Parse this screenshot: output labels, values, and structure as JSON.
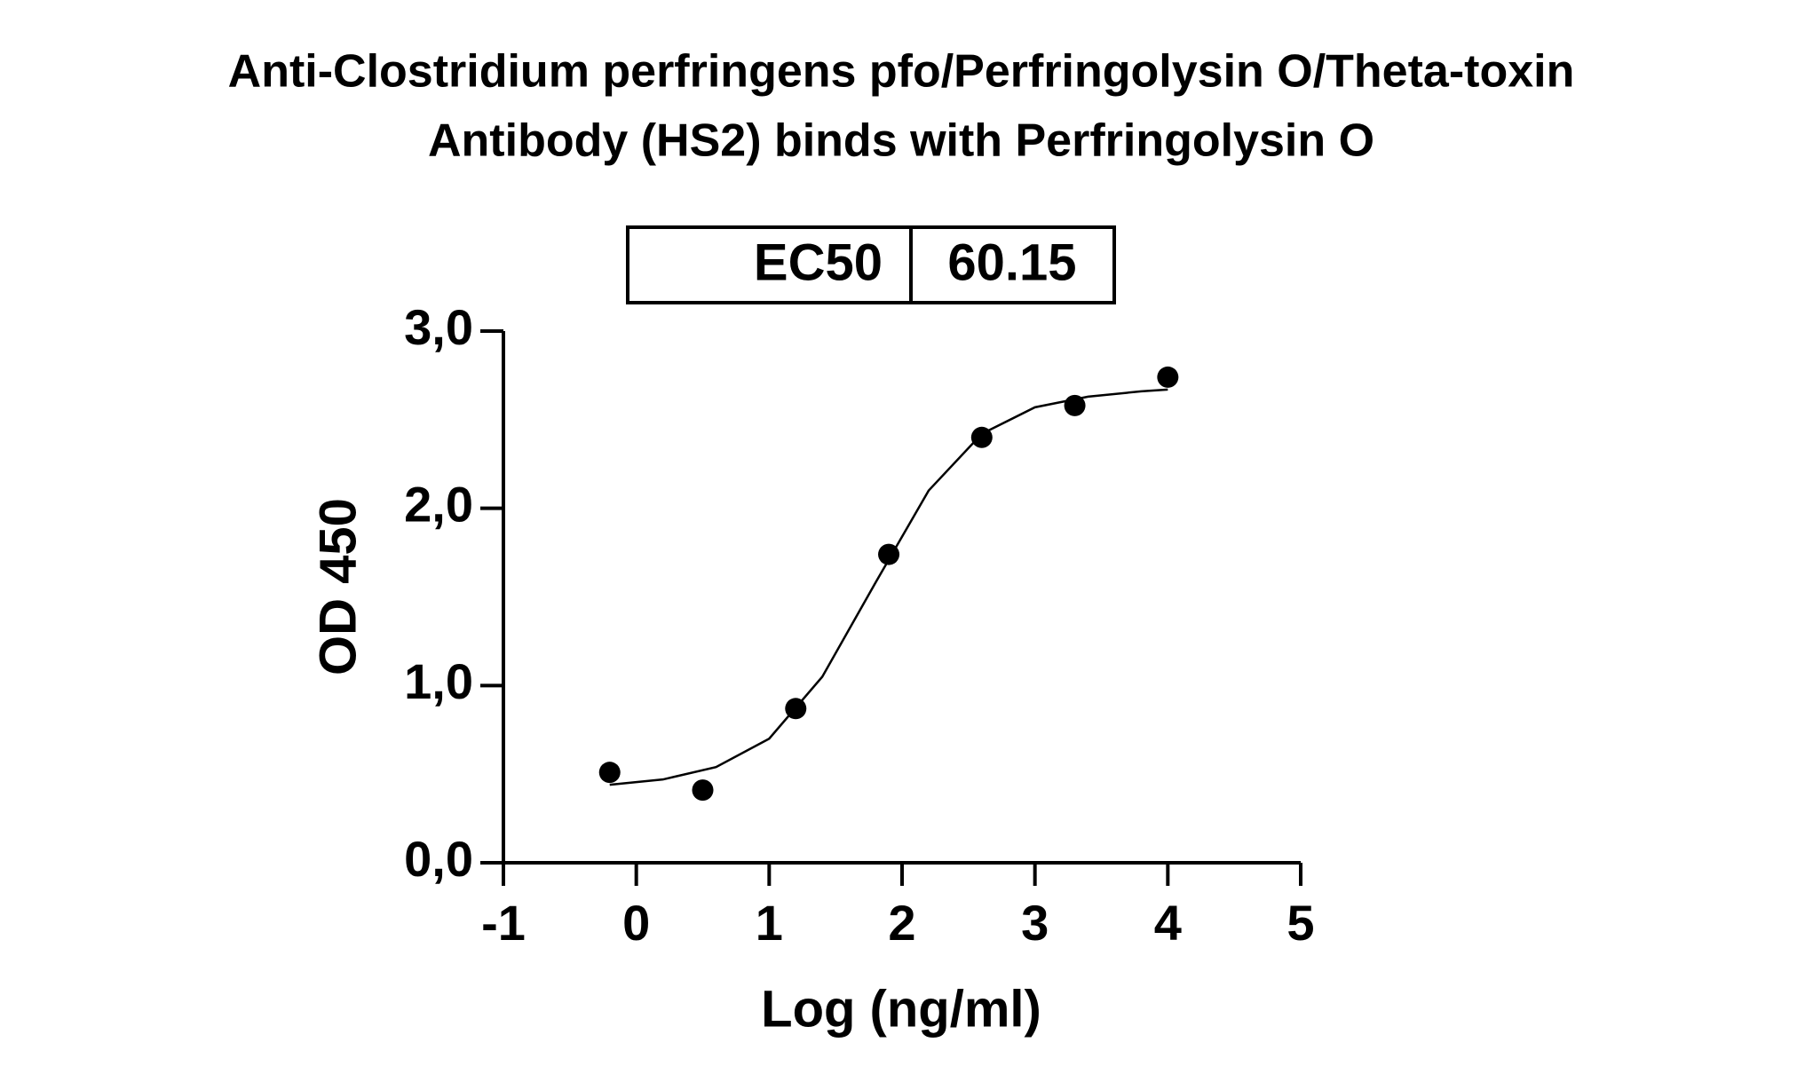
{
  "chart_data": {
    "type": "scatter",
    "title": [
      "Anti-Clostridium perfringens pfo/Perfringolysin O/Theta-toxin",
      "Antibody (HS2) binds with Perfringolysin O"
    ],
    "x_label": "Log (ng/ml)",
    "y_label": "OD 450",
    "ec50_table": {
      "label": "EC50",
      "value": "60.15"
    },
    "xlim": [
      -1,
      5
    ],
    "ylim": [
      0,
      3
    ],
    "xticks": [
      -1,
      0,
      1,
      2,
      3,
      4,
      5
    ],
    "yticks": [
      {
        "value": 0,
        "label": "0,0"
      },
      {
        "value": 1,
        "label": "1,0"
      },
      {
        "value": 2,
        "label": "2,0"
      },
      {
        "value": 3,
        "label": "3,0"
      }
    ],
    "points": {
      "color": "#000000",
      "x": [
        -0.2,
        0.5,
        1.2,
        1.9,
        2.6,
        3.3,
        4.0
      ],
      "values": [
        0.51,
        0.41,
        0.87,
        1.74,
        2.4,
        2.58,
        2.74
      ]
    },
    "fit": {
      "color": "#000000",
      "x": [
        -0.2,
        0.2,
        0.6,
        1.0,
        1.4,
        1.8,
        2.2,
        2.6,
        3.0,
        3.4,
        3.8,
        4.0
      ],
      "values": [
        0.44,
        0.47,
        0.54,
        0.7,
        1.05,
        1.58,
        2.1,
        2.42,
        2.57,
        2.63,
        2.66,
        2.67
      ]
    }
  }
}
